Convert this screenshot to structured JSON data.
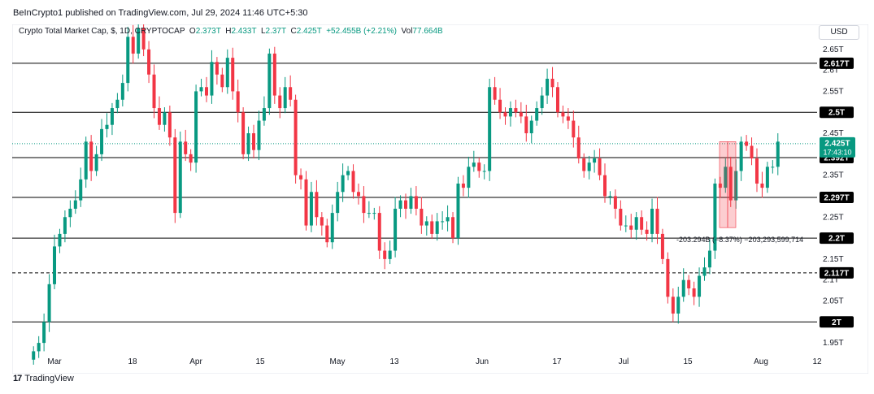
{
  "header": {
    "caption": "BeInCrypto1 published on TradingView.com, Jul 29, 2024 11:46 UTC+5:30"
  },
  "legend": {
    "symbol": "Crypto Total Market Cap, $, 1D, CRYPTOCAP",
    "open_label": "O",
    "open": "2.373T",
    "high_label": "H",
    "high": "2.433T",
    "low_label": "L",
    "low": "2.37T",
    "close_label": "C",
    "close": "2.425T",
    "change": "+52.455B (+2.21%)",
    "vol_label": "Vol",
    "vol": "77.664B"
  },
  "currency_button": "USD",
  "footer": {
    "brand": "TradingView",
    "logo_icon": "tradingview-logo-icon"
  },
  "colors": {
    "up": "#089981",
    "down": "#f23645",
    "line": "#000000",
    "label_bg": "#000000",
    "current_bg": "#089981"
  },
  "chart_data": {
    "type": "candlestick",
    "y_unit": "T",
    "ylim": [
      1.925,
      2.7
    ],
    "y_ticks": [
      "1.95T",
      "2.05T",
      "2.1T",
      "2.15T",
      "2.25T",
      "2.35T",
      "2.45T",
      "2.55T",
      "2.6T",
      "2.65T"
    ],
    "x_ticks": [
      "Mar",
      "18",
      "Apr",
      "15",
      "May",
      "13",
      "Jun",
      "17",
      "Jul",
      "15",
      "Aug",
      "12"
    ],
    "levels": [
      {
        "value": 2.617,
        "label": "2.617T",
        "style": "solid"
      },
      {
        "value": 2.5,
        "label": "2.5T",
        "style": "solid"
      },
      {
        "value": 2.392,
        "label": "2.392T",
        "style": "solid"
      },
      {
        "value": 2.297,
        "label": "2.297T",
        "style": "solid"
      },
      {
        "value": 2.2,
        "label": "2.2T",
        "style": "solid"
      },
      {
        "value": 2.117,
        "label": "2.117T",
        "style": "dashed"
      },
      {
        "value": 2.0,
        "label": "2T",
        "style": "solid"
      }
    ],
    "current_price": {
      "value": 2.425,
      "label": "2.425T",
      "countdown": "17:43:10"
    },
    "measure_annotation": "-203.294B (−8.37%) −203,293,599,714",
    "closes": [
      1.93,
      1.95,
      2.0,
      2.09,
      2.18,
      2.21,
      2.25,
      2.27,
      2.29,
      2.34,
      2.43,
      2.36,
      2.4,
      2.46,
      2.47,
      2.51,
      2.53,
      2.57,
      2.68,
      2.64,
      2.7,
      2.65,
      2.59,
      2.51,
      2.47,
      2.5,
      2.44,
      2.26,
      2.43,
      2.4,
      2.38,
      2.55,
      2.56,
      2.54,
      2.62,
      2.59,
      2.56,
      2.63,
      2.55,
      2.5,
      2.4,
      2.45,
      2.41,
      2.48,
      2.51,
      2.64,
      2.54,
      2.51,
      2.56,
      2.53,
      2.35,
      2.34,
      2.23,
      2.31,
      2.25,
      2.23,
      2.19,
      2.26,
      2.31,
      2.35,
      2.36,
      2.31,
      2.3,
      2.26,
      2.26,
      2.26,
      2.17,
      2.15,
      2.17,
      2.27,
      2.29,
      2.27,
      2.3,
      2.27,
      2.23,
      2.24,
      2.21,
      2.24,
      2.24,
      2.25,
      2.2,
      2.33,
      2.32,
      2.37,
      2.38,
      2.36,
      2.36,
      2.56,
      2.53,
      2.5,
      2.49,
      2.51,
      2.5,
      2.49,
      2.45,
      2.48,
      2.51,
      2.54,
      2.58,
      2.56,
      2.5,
      2.49,
      2.48,
      2.44,
      2.39,
      2.36,
      2.38,
      2.39,
      2.35,
      2.3,
      2.3,
      2.27,
      2.23,
      2.23,
      2.22,
      2.25,
      2.22,
      2.21,
      2.27,
      2.21,
      2.15,
      2.06,
      2.02,
      2.06,
      2.1,
      2.08,
      2.06,
      2.11,
      2.13,
      2.17,
      2.33,
      2.32,
      2.37,
      2.29,
      2.36,
      2.43,
      2.42,
      2.39,
      2.33,
      2.32,
      2.37,
      2.37,
      2.43
    ]
  }
}
